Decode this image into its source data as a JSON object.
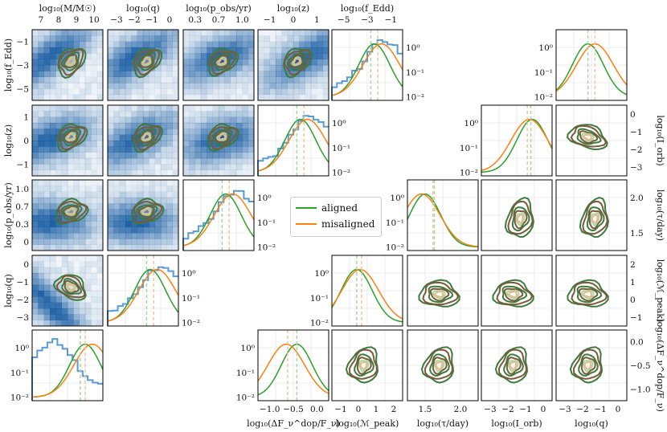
{
  "figure": {
    "legend": [
      {
        "label": "aligned",
        "color": "#2ca02c"
      },
      {
        "label": "misaligned",
        "color": "#ff7f0e"
      }
    ],
    "colors": {
      "aligned": "#2ca02c",
      "misaligned": "#ff7f0e",
      "hist_step": "#5b9bd5",
      "kde_aligned": "#3d7a3d",
      "kde_misaligned": "#7a5a3a",
      "heat_low": "#f7fbff",
      "heat_high": "#08519c"
    }
  },
  "chart_data": [
    {
      "type": "heatmap-corner",
      "name": "left-corner",
      "variables": [
        {
          "key": "mass",
          "label": "log₁₀(M/M☉)",
          "ticks": [
            "7",
            "8",
            "9",
            "10"
          ],
          "range": [
            6.3,
            10
          ]
        },
        {
          "key": "q",
          "label": "log₁₀(q)",
          "ticks": [
            "−3",
            "−2",
            "−1",
            "0"
          ],
          "range": [
            -4,
            0
          ]
        },
        {
          "key": "pobs",
          "label": "log₁₀(p_obs/yr)",
          "ticks": [
            "0.3",
            "0.7",
            "1.0"
          ],
          "range": [
            0.0,
            1.0
          ]
        },
        {
          "key": "z",
          "label": "log₁₀(z)",
          "ticks": [
            "−1",
            "0",
            "1"
          ],
          "range": [
            -1.5,
            1
          ]
        },
        {
          "key": "fedd",
          "label": "log₁₀(f_Edd)",
          "ticks": [
            "−5",
            "−3",
            "−1"
          ],
          "range": [
            -6,
            0
          ]
        }
      ],
      "row_labels": [
        "log₁₀(f_Edd)",
        "log₁₀(z)",
        "log₁₀(p_obs/yr)",
        "log₁₀(q)"
      ],
      "row_ticks": [
        [
          "−1",
          "−3",
          "−5"
        ],
        [
          "1",
          "0",
          "−1"
        ],
        [
          "1.0",
          "0.7",
          "0.3",
          "0"
        ],
        [
          "0",
          "−1",
          "−2",
          "−3"
        ]
      ],
      "diag_ticks": [
        "10⁰",
        "10⁻¹",
        "10⁻²"
      ],
      "diag_medians": {
        "aligned": -2.9,
        "misaligned": -2.8
      }
    },
    {
      "type": "kde-corner",
      "name": "right-corner",
      "variables": [
        {
          "key": "dF",
          "label": "log₁₀(ΔF_ν^dop/F_ν)",
          "ticks": [
            "−1.0",
            "−0.5",
            "0.0"
          ],
          "range": [
            -1.1,
            0.35
          ]
        },
        {
          "key": "M",
          "label": "log₁₀(ℳ_peak)",
          "ticks": [
            "−1",
            "0",
            "1",
            "2"
          ],
          "range": [
            -1.5,
            2.5
          ]
        },
        {
          "key": "tau",
          "label": "log₁₀(τ/day)",
          "ticks": [
            "1.5",
            "2.0"
          ],
          "range": [
            1.3,
            2.5
          ]
        },
        {
          "key": "Iorb",
          "label": "log₁₀(I_orb)",
          "ticks": [
            "−3",
            "−2",
            "−1",
            "0"
          ],
          "range": [
            -3.5,
            0.3
          ]
        },
        {
          "key": "lq",
          "label": "log₁₀(q)",
          "ticks": [
            "−3",
            "−2",
            "−1",
            "0"
          ],
          "range": [
            -4,
            0.3
          ]
        }
      ],
      "row_labels": [
        "log₁₀(I_orb)",
        "log₁₀(τ/day)",
        "log₁₀(ℳ_peak)",
        "log₁₀(ΔF_ν^dop/F_ν)"
      ],
      "row_ticks": [
        [
          "0",
          "−1",
          "−2",
          "−3"
        ],
        [
          "2.0",
          "1.5"
        ],
        [
          "2",
          "1",
          "0",
          "−1"
        ],
        [
          "0.0",
          "−0.5",
          "−1.0"
        ]
      ],
      "diag_ticks": [
        "10⁰",
        "10⁻¹",
        "10⁻²"
      ],
      "diag_medians": {
        "aligned": -0.35,
        "misaligned": -0.45
      }
    }
  ]
}
